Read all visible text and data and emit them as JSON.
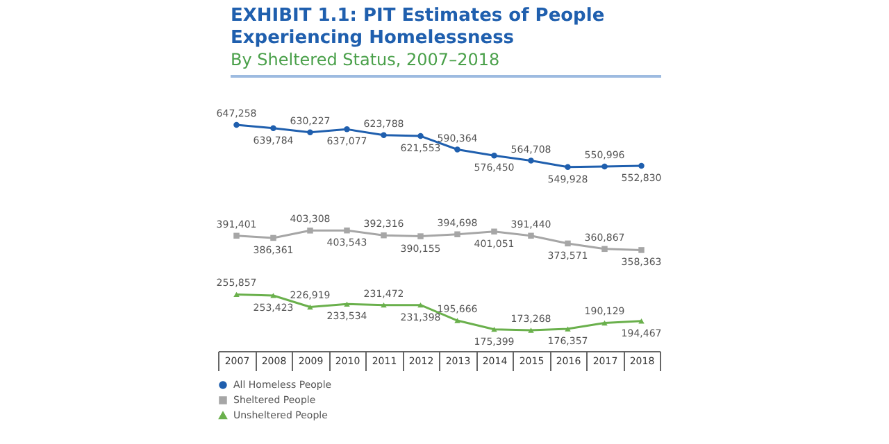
{
  "chart_data": {
    "type": "line",
    "title": "EXHIBIT 1.1: PIT Estimates of People Experiencing Homelessness",
    "subtitle": "By Sheltered Status, 2007–2018",
    "categories": [
      "2007",
      "2008",
      "2009",
      "2010",
      "2011",
      "2012",
      "2013",
      "2014",
      "2015",
      "2016",
      "2017",
      "2018"
    ],
    "series": [
      {
        "name": "All Homeless People",
        "color": "#1f5fae",
        "marker": "circle",
        "values": [
          647258,
          639784,
          630227,
          637077,
          623788,
          621553,
          590364,
          576450,
          564708,
          549928,
          550996,
          552830
        ],
        "value_labels": [
          "647,258",
          "639,784",
          "630,227",
          "637,077",
          "623,788",
          "621,553",
          "590,364",
          "576,450",
          "564,708",
          "549,928",
          "550,996",
          "552,830"
        ]
      },
      {
        "name": "Sheltered People",
        "color": "#a6a6a6",
        "marker": "square",
        "values": [
          391401,
          386361,
          403308,
          403543,
          392316,
          390155,
          394698,
          401051,
          391440,
          373571,
          360867,
          358363
        ],
        "value_labels": [
          "391,401",
          "386,361",
          "403,308",
          "403,543",
          "392,316",
          "390,155",
          "394,698",
          "401,051",
          "391,440",
          "373,571",
          "360,867",
          "358,363"
        ]
      },
      {
        "name": "Unsheltered People",
        "color": "#6ab04c",
        "marker": "triangle",
        "values": [
          255857,
          253423,
          226919,
          233534,
          231472,
          231398,
          195666,
          175399,
          173268,
          176357,
          190129,
          194467
        ],
        "value_labels": [
          "255,857",
          "253,423",
          "226,919",
          "233,534",
          "231,472",
          "231,398",
          "195,666",
          "175,399",
          "173,268",
          "176,357",
          "190,129",
          "194,467"
        ]
      }
    ],
    "legend": "bottom",
    "grid": false
  }
}
